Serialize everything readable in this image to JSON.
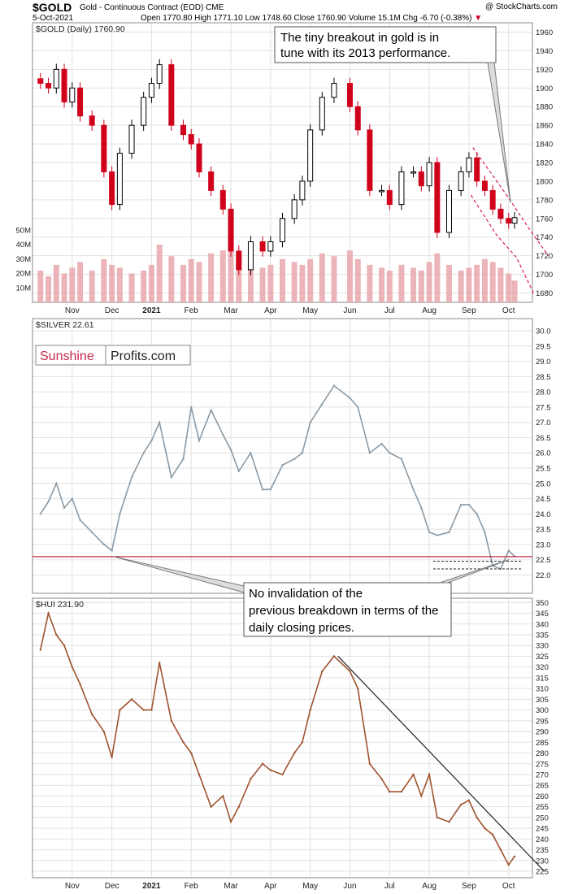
{
  "header": {
    "symbol": "$GOLD",
    "instrument": "Gold - Continuous Contract (EOD) CME",
    "date": "5-Oct-2021",
    "ohlc": "Open 1770.80  High 1771.10  Low 1748.60  Close 1760.90  Volume 15.1M  Chg -6.70 (-0.38%)",
    "change_marker": "▼",
    "credit": "@ StockCharts.com"
  },
  "colors": {
    "up": "#000000",
    "down": "#d0021b",
    "silver": "#8a9aa6",
    "hui": "#a0522d",
    "volume": "#e8a7ad",
    "grid": "#e2e2e2",
    "ref_line": "#b3102a",
    "breakout_channel": "#d81b5a"
  },
  "xaxis": {
    "months": [
      "Nov",
      "Dec",
      "2021",
      "Feb",
      "Mar",
      "Apr",
      "May",
      "Jun",
      "Jul",
      "Aug",
      "Sep",
      "Oct"
    ],
    "month_values": [
      0,
      1,
      2,
      3,
      4,
      5,
      6,
      7,
      8,
      9,
      10,
      11
    ]
  },
  "chart_data": [
    {
      "type": "candlestick",
      "label": "$GOLD (Daily) 1760.90",
      "ylim": [
        1670,
        1970
      ],
      "yticks": [
        1680,
        1700,
        1720,
        1740,
        1760,
        1780,
        1800,
        1820,
        1840,
        1860,
        1880,
        1900,
        1920,
        1940,
        1960
      ],
      "volume_ticks": [
        "10M",
        "20M",
        "30M",
        "40M",
        "50M"
      ],
      "volume_tick_values": [
        10,
        20,
        30,
        40,
        50
      ],
      "volume_max": 62,
      "x": [
        -0.8,
        -0.6,
        -0.4,
        -0.2,
        0,
        0.2,
        0.5,
        0.8,
        1,
        1.2,
        1.5,
        1.8,
        2,
        2.2,
        2.5,
        2.8,
        3,
        3.2,
        3.5,
        3.8,
        4,
        4.2,
        4.5,
        4.8,
        5,
        5.3,
        5.6,
        5.8,
        6,
        6.3,
        6.6,
        7,
        7.2,
        7.5,
        7.8,
        8,
        8.3,
        8.6,
        8.8,
        9,
        9.2,
        9.5,
        9.8,
        10,
        10.2,
        10.4,
        10.6,
        10.8,
        11,
        11.15
      ],
      "y": [
        1905,
        1900,
        1920,
        1885,
        1900,
        1870,
        1860,
        1810,
        1775,
        1830,
        1860,
        1890,
        1905,
        1925,
        1860,
        1850,
        1840,
        1810,
        1790,
        1770,
        1725,
        1705,
        1735,
        1725,
        1735,
        1760,
        1780,
        1800,
        1855,
        1890,
        1905,
        1880,
        1855,
        1790,
        1790,
        1775,
        1810,
        1810,
        1795,
        1820,
        1745,
        1790,
        1810,
        1825,
        1800,
        1790,
        1770,
        1760,
        1755,
        1760.9
      ],
      "volume": [
        22,
        18,
        26,
        20,
        24,
        28,
        22,
        30,
        26,
        24,
        20,
        22,
        26,
        40,
        32,
        26,
        30,
        28,
        34,
        36,
        44,
        30,
        28,
        24,
        26,
        30,
        28,
        26,
        30,
        34,
        32,
        36,
        30,
        26,
        24,
        22,
        26,
        24,
        22,
        28,
        34,
        26,
        22,
        24,
        26,
        30,
        28,
        24,
        20,
        15.1
      ],
      "annotation": "The tiny breakout in gold is in tune with its 2013 performance.",
      "channel_upper": {
        "x": [
          10.1,
          11.0,
          11.5,
          12.0
        ],
        "y": [
          1836,
          1782,
          1750,
          1720
        ]
      },
      "channel_lower": {
        "x": [
          10.05,
          10.7,
          11.2,
          11.65
        ],
        "y": [
          1785,
          1742,
          1718,
          1678
        ]
      }
    },
    {
      "type": "line",
      "label": "$SILVER 22.61",
      "ylim": [
        21.4,
        30.4
      ],
      "yticks": [
        22.0,
        22.5,
        23.0,
        23.5,
        24.0,
        24.5,
        25.0,
        25.5,
        26.0,
        26.5,
        27.0,
        27.5,
        28.0,
        28.5,
        29.0,
        29.5,
        30.0
      ],
      "x": [
        -0.8,
        -0.6,
        -0.4,
        -0.2,
        0,
        0.2,
        0.5,
        0.8,
        1,
        1.2,
        1.5,
        1.8,
        2,
        2.2,
        2.5,
        2.8,
        3,
        3.2,
        3.5,
        3.8,
        4,
        4.2,
        4.5,
        4.8,
        5,
        5.3,
        5.6,
        5.8,
        6,
        6.3,
        6.6,
        7,
        7.2,
        7.5,
        7.8,
        8,
        8.3,
        8.6,
        8.8,
        9,
        9.2,
        9.5,
        9.8,
        10,
        10.2,
        10.4,
        10.6,
        10.8,
        11,
        11.15
      ],
      "y": [
        24.0,
        24.4,
        25.0,
        24.2,
        24.5,
        23.8,
        23.4,
        23.0,
        22.8,
        24.0,
        25.2,
        26.0,
        26.4,
        27.0,
        25.2,
        25.8,
        27.5,
        26.4,
        27.4,
        26.6,
        26.1,
        25.4,
        26.0,
        24.8,
        24.8,
        25.6,
        25.8,
        26.0,
        27.0,
        27.6,
        28.2,
        27.8,
        27.5,
        26.0,
        26.3,
        26.0,
        25.8,
        24.8,
        24.2,
        23.4,
        23.3,
        23.4,
        24.3,
        24.3,
        24.0,
        23.4,
        22.3,
        22.2,
        22.8,
        22.61
      ],
      "reference_level": 22.6,
      "breakdown_levels": [
        22.45,
        22.2
      ],
      "logo": {
        "part1": "Sunshine",
        "part2": "Profits.com"
      },
      "annotation": "No invalidation of the previous breakdown in terms of the daily closing prices."
    },
    {
      "type": "line",
      "label": "$HUI 231.90",
      "ylim": [
        222,
        352
      ],
      "yticks": [
        225,
        230,
        235,
        240,
        245,
        250,
        255,
        260,
        265,
        270,
        275,
        280,
        285,
        290,
        295,
        300,
        305,
        310,
        315,
        320,
        325,
        330,
        335,
        340,
        345,
        350
      ],
      "x": [
        -0.8,
        -0.6,
        -0.4,
        -0.2,
        0,
        0.2,
        0.5,
        0.8,
        1,
        1.2,
        1.5,
        1.8,
        2,
        2.2,
        2.5,
        2.8,
        3,
        3.2,
        3.5,
        3.8,
        4,
        4.2,
        4.5,
        4.8,
        5,
        5.3,
        5.6,
        5.8,
        6,
        6.3,
        6.6,
        7,
        7.2,
        7.5,
        7.8,
        8,
        8.3,
        8.6,
        8.8,
        9,
        9.2,
        9.5,
        9.8,
        10,
        10.2,
        10.4,
        10.6,
        10.8,
        11,
        11.15
      ],
      "y": [
        328,
        345,
        335,
        330,
        320,
        312,
        298,
        290,
        278,
        300,
        305,
        300,
        300,
        322,
        295,
        285,
        280,
        270,
        255,
        260,
        248,
        255,
        268,
        275,
        272,
        270,
        280,
        285,
        300,
        318,
        325,
        318,
        310,
        275,
        268,
        262,
        262,
        270,
        260,
        270,
        250,
        248,
        256,
        258,
        250,
        245,
        242,
        235,
        228,
        231.9
      ],
      "trendline": {
        "x": [
          6.7,
          11.9
        ],
        "y": [
          325,
          225
        ]
      }
    }
  ]
}
